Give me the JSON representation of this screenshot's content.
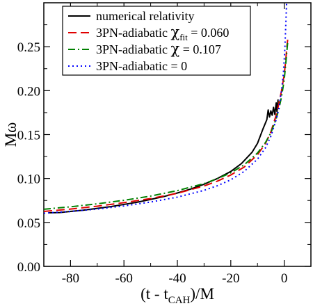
{
  "chart_data": {
    "type": "line",
    "title": "",
    "xlabel": "(t - t",
    "xlabel_sub": "CAH",
    "xlabel_tail": ")/M",
    "ylabel": "Mω",
    "xlim": [
      -90,
      10
    ],
    "ylim": [
      0.0,
      0.3
    ],
    "xticks": [
      -80,
      -60,
      -40,
      -20,
      0
    ],
    "xtick_labels": [
      "-80",
      "-60",
      "-40",
      "-20",
      "0"
    ],
    "yticks": [
      0.0,
      0.05,
      0.1,
      0.15,
      0.2,
      0.25
    ],
    "ytick_labels": [
      "0.00",
      "0.05",
      "0.10",
      "0.15",
      "0.20",
      "0.25"
    ],
    "grid": false,
    "legend_position": "top-right",
    "series": [
      {
        "name": "numerical relativity",
        "legend_parts": [
          "numerical relativity"
        ],
        "color": "#000000",
        "dash": "solid",
        "points": [
          [
            -88,
            0.061
          ],
          [
            -84,
            0.0612
          ],
          [
            -80,
            0.0625
          ],
          [
            -75,
            0.064
          ],
          [
            -70,
            0.066
          ],
          [
            -65,
            0.068
          ],
          [
            -60,
            0.0705
          ],
          [
            -55,
            0.073
          ],
          [
            -50,
            0.0762
          ],
          [
            -45,
            0.0795
          ],
          [
            -40,
            0.0835
          ],
          [
            -35,
            0.088
          ],
          [
            -30,
            0.0935
          ],
          [
            -25,
            0.1
          ],
          [
            -20,
            0.108
          ],
          [
            -16,
            0.117
          ],
          [
            -12,
            0.13
          ],
          [
            -10,
            0.14
          ],
          [
            -8,
            0.156
          ],
          [
            -6.5,
            0.167
          ],
          [
            -6,
            0.178
          ],
          [
            -5.5,
            0.17
          ],
          [
            -5,
            0.177
          ],
          [
            -4.5,
            0.172
          ],
          [
            -4,
            0.181
          ],
          [
            -3.5,
            0.173
          ],
          [
            -3,
            0.186
          ],
          [
            -2.7,
            0.176
          ],
          [
            -2.3,
            0.19
          ]
        ]
      },
      {
        "name": "3PN-adiabatic χfit = 0.060",
        "legend_parts": [
          "3PN-adiabatic ",
          "χ",
          "fit",
          " = 0.060"
        ],
        "color": "#e00000",
        "dash": "12,6",
        "points": [
          [
            -90,
            0.0625
          ],
          [
            -80,
            0.0652
          ],
          [
            -70,
            0.0685
          ],
          [
            -60,
            0.0725
          ],
          [
            -50,
            0.0772
          ],
          [
            -40,
            0.0832
          ],
          [
            -30,
            0.0915
          ],
          [
            -25,
            0.097
          ],
          [
            -20,
            0.104
          ],
          [
            -15,
            0.113
          ],
          [
            -10,
            0.127
          ],
          [
            -7,
            0.14
          ],
          [
            -5,
            0.153
          ],
          [
            -3,
            0.172
          ],
          [
            -2,
            0.185
          ],
          [
            -1,
            0.2
          ],
          [
            0,
            0.218
          ],
          [
            0.6,
            0.235
          ],
          [
            1,
            0.25
          ],
          [
            1.3,
            0.258
          ]
        ]
      },
      {
        "name": "3PN-adiabatic χ = 0.107",
        "legend_parts": [
          "3PN-adiabatic ",
          "χ",
          "",
          " = 0.107"
        ],
        "color": "#008000",
        "dash": "10,4,2,4",
        "points": [
          [
            -90,
            0.065
          ],
          [
            -80,
            0.0678
          ],
          [
            -70,
            0.0712
          ],
          [
            -60,
            0.0752
          ],
          [
            -50,
            0.08
          ],
          [
            -40,
            0.0862
          ],
          [
            -30,
            0.0942
          ],
          [
            -25,
            0.0998
          ],
          [
            -20,
            0.1065
          ],
          [
            -15,
            0.1155
          ],
          [
            -10,
            0.129
          ],
          [
            -7,
            0.141
          ],
          [
            -5,
            0.152
          ],
          [
            -3,
            0.168
          ],
          [
            -2,
            0.179
          ],
          [
            -1,
            0.193
          ],
          [
            0,
            0.212
          ],
          [
            0.5,
            0.228
          ],
          [
            1,
            0.245
          ],
          [
            1.3,
            0.255
          ]
        ]
      },
      {
        "name": "3PN-adiabatic  = 0",
        "legend_parts": [
          "3PN-adiabatic ",
          "",
          "",
          " = 0"
        ],
        "color": "#0000ff",
        "dash": "2,4",
        "points": [
          [
            -90,
            0.0605
          ],
          [
            -80,
            0.0625
          ],
          [
            -70,
            0.0652
          ],
          [
            -60,
            0.0688
          ],
          [
            -50,
            0.0732
          ],
          [
            -40,
            0.0788
          ],
          [
            -30,
            0.0865
          ],
          [
            -25,
            0.0918
          ],
          [
            -20,
            0.0985
          ],
          [
            -15,
            0.108
          ],
          [
            -10,
            0.122
          ],
          [
            -7,
            0.135
          ],
          [
            -5,
            0.148
          ],
          [
            -3,
            0.167
          ],
          [
            -2,
            0.18
          ],
          [
            -1,
            0.2
          ],
          [
            -0.3,
            0.22
          ],
          [
            0.2,
            0.245
          ],
          [
            0.6,
            0.275
          ],
          [
            0.9,
            0.3
          ]
        ]
      }
    ]
  }
}
